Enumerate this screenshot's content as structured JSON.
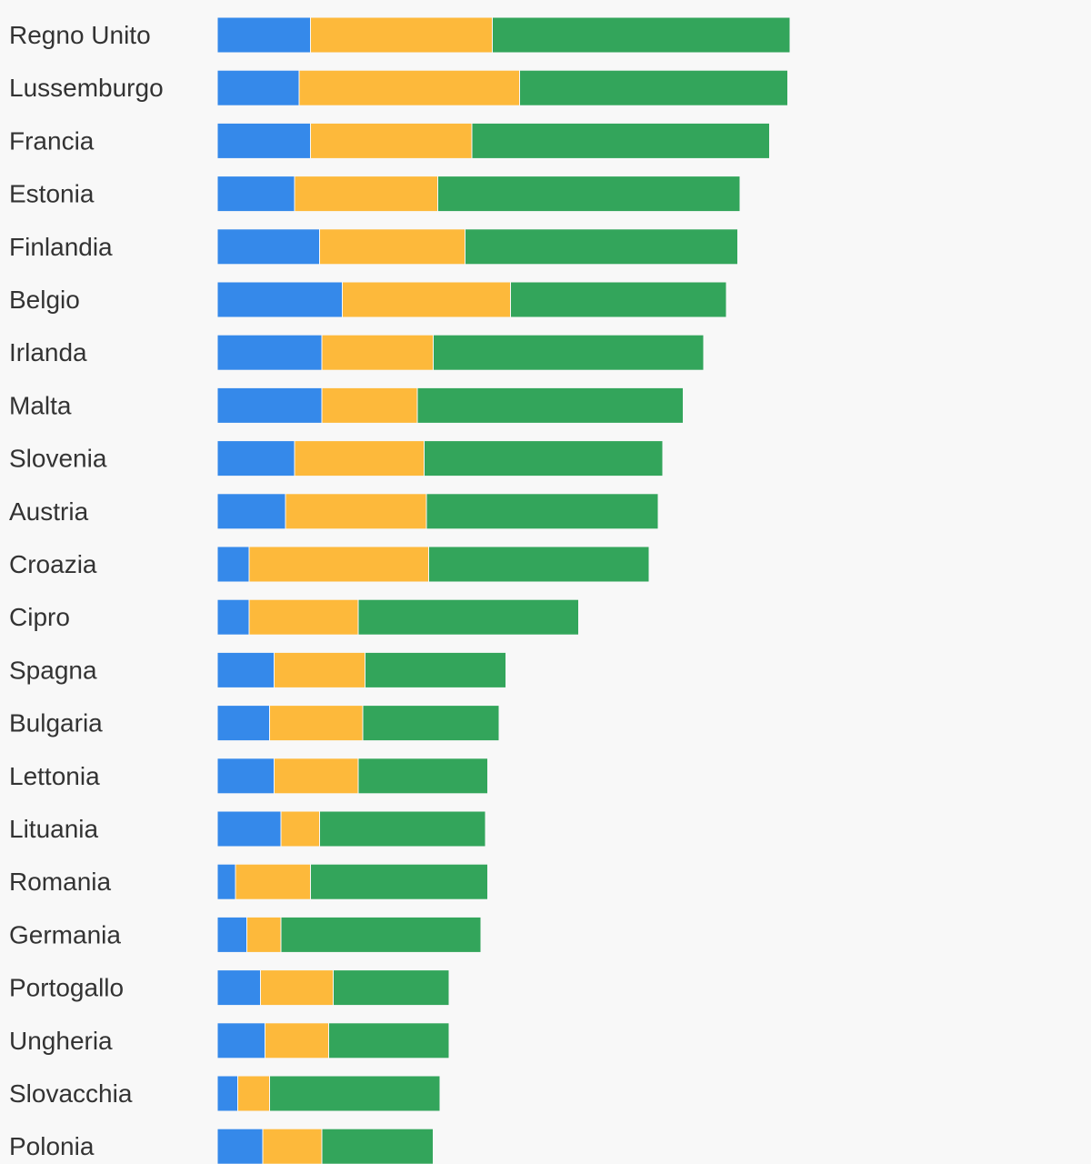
{
  "chart_data": {
    "type": "bar",
    "orientation": "horizontal",
    "stacked": true,
    "categories": [
      "Regno Unito",
      "Lussemburgo",
      "Francia",
      "Estonia",
      "Finlandia",
      "Belgio",
      "Irlanda",
      "Malta",
      "Slovenia",
      "Austria",
      "Croazia",
      "Cipro",
      "Spagna",
      "Bulgaria",
      "Lettonia",
      "Lituania",
      "Romania",
      "Germania",
      "Portogallo",
      "Ungheria",
      "Slovacchia",
      "Polonia"
    ],
    "series": [
      {
        "color": "#3589ea",
        "values": [
          4.1,
          3.6,
          4.1,
          3.4,
          4.5,
          5.5,
          4.6,
          4.6,
          3.4,
          3.0,
          1.4,
          1.4,
          2.5,
          2.3,
          2.5,
          2.8,
          0.8,
          1.3,
          1.9,
          2.1,
          0.9,
          2.0
        ]
      },
      {
        "color": "#fdb93b",
        "values": [
          8.0,
          9.7,
          7.1,
          6.3,
          6.4,
          7.4,
          4.9,
          4.2,
          5.7,
          6.2,
          7.9,
          4.8,
          4.0,
          4.1,
          3.7,
          1.7,
          3.3,
          1.5,
          3.2,
          2.8,
          1.4,
          2.6
        ]
      },
      {
        "color": "#33a55b",
        "values": [
          13.1,
          11.8,
          13.1,
          13.3,
          12.0,
          9.5,
          11.9,
          11.7,
          10.5,
          10.2,
          9.7,
          9.7,
          6.2,
          6.0,
          5.7,
          7.3,
          7.8,
          8.8,
          5.1,
          5.3,
          7.5,
          4.9
        ]
      }
    ],
    "xlim": [
      0,
      38.4
    ],
    "grid": false,
    "legend": "none",
    "title": "",
    "xlabel": "",
    "ylabel": ""
  }
}
